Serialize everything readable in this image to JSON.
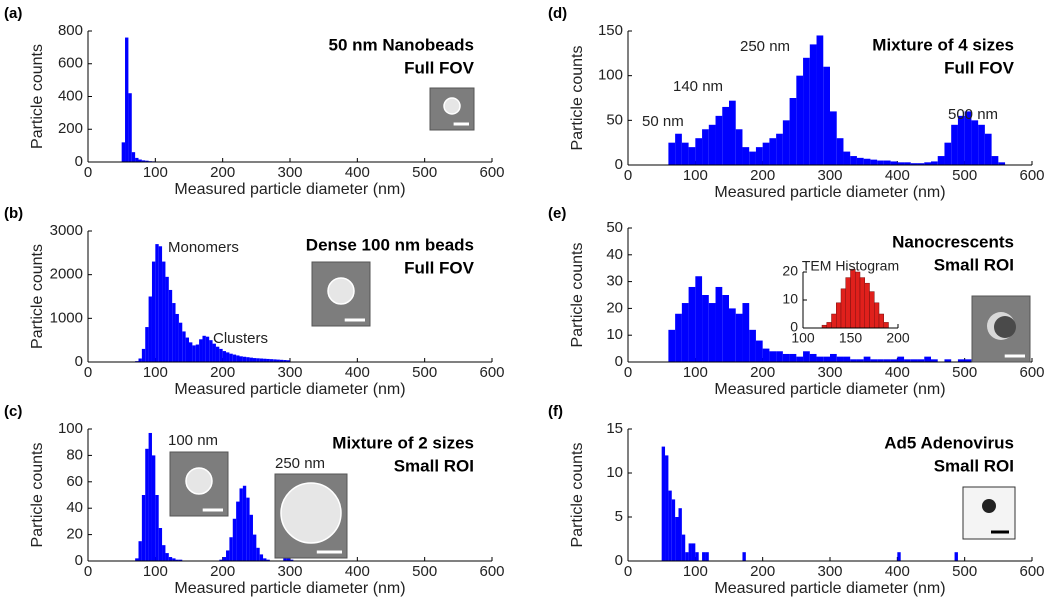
{
  "chart_data": [
    {
      "type": "histogram",
      "label": "(a)",
      "title": "50 nm Nanobeads",
      "subtitle": "Full FOV",
      "xlabel": "Measured particle diameter (nm)",
      "ylabel": "Particle counts",
      "color": "#0000ff",
      "bins": [
        50,
        55,
        60,
        65,
        70,
        75,
        80,
        85,
        90,
        95,
        100,
        105,
        110,
        115,
        120
      ],
      "counts": [
        120,
        760,
        420,
        60,
        25,
        15,
        10,
        8,
        5,
        4,
        3,
        3,
        2,
        2
      ],
      "xlim": [
        0,
        600
      ],
      "xticks": [
        0,
        100,
        200,
        300,
        400,
        500,
        600
      ],
      "ylim": [
        0,
        800
      ],
      "yticks": [
        0,
        200,
        400,
        600,
        800
      ]
    },
    {
      "type": "histogram",
      "label": "(b)",
      "title": "Dense 100 nm beads",
      "subtitle": "Full FOV",
      "annotations": [
        "Monomers",
        "Clusters"
      ],
      "xlabel": "Measured particle diameter (nm)",
      "ylabel": "Particle counts",
      "color": "#0000ff",
      "bins": [
        70,
        75,
        80,
        85,
        90,
        95,
        100,
        105,
        110,
        115,
        120,
        125,
        130,
        135,
        140,
        145,
        150,
        155,
        160,
        165,
        170,
        175,
        180,
        185,
        190,
        195,
        200,
        205,
        210,
        215,
        220,
        225,
        230,
        235,
        240,
        245,
        250,
        255,
        260,
        265,
        270,
        275,
        280,
        285,
        290,
        295,
        300
      ],
      "counts": [
        20,
        80,
        300,
        800,
        1500,
        2300,
        2700,
        2650,
        2300,
        1950,
        1650,
        1350,
        1100,
        900,
        700,
        560,
        450,
        380,
        400,
        520,
        600,
        580,
        500,
        420,
        350,
        300,
        250,
        220,
        190,
        170,
        150,
        130,
        120,
        110,
        100,
        90,
        85,
        80,
        75,
        70,
        65,
        60,
        55,
        50,
        45,
        40
      ],
      "xlim": [
        0,
        600
      ],
      "xticks": [
        0,
        100,
        200,
        300,
        400,
        500,
        600
      ],
      "ylim": [
        0,
        3000
      ],
      "yticks": [
        0,
        1000,
        2000,
        3000
      ]
    },
    {
      "type": "histogram",
      "label": "(c)",
      "title": "Mixture of 2 sizes",
      "subtitle": "Small ROI",
      "annotations": [
        "100 nm",
        "250 nm"
      ],
      "xlabel": "Measured particle diameter (nm)",
      "ylabel": "Particle counts",
      "color": "#0000ff",
      "bins": [
        70,
        75,
        80,
        85,
        90,
        95,
        100,
        105,
        110,
        115,
        120,
        125,
        130,
        135,
        140,
        145,
        150,
        155,
        160,
        165,
        170,
        175,
        180,
        185,
        190,
        195,
        200,
        205,
        210,
        215,
        220,
        225,
        230,
        235,
        240,
        245,
        250,
        255,
        260,
        265,
        270,
        275,
        280,
        285,
        290,
        295,
        300,
        305,
        310
      ],
      "counts": [
        2,
        15,
        50,
        85,
        97,
        80,
        50,
        25,
        12,
        6,
        3,
        2,
        1,
        1,
        0,
        0,
        0,
        0,
        0,
        0,
        0,
        0,
        0,
        0,
        0,
        1,
        3,
        8,
        18,
        32,
        45,
        55,
        57,
        48,
        35,
        20,
        10,
        5,
        2,
        1,
        0,
        0,
        0,
        0,
        2,
        2,
        1,
        0
      ],
      "xlim": [
        0,
        600
      ],
      "xticks": [
        0,
        100,
        200,
        300,
        400,
        500,
        600
      ],
      "ylim": [
        0,
        100
      ],
      "yticks": [
        0,
        20,
        40,
        60,
        80,
        100
      ]
    },
    {
      "type": "histogram",
      "label": "(d)",
      "title": "Mixture of 4 sizes",
      "subtitle": "Full FOV",
      "annotations": [
        "50 nm",
        "140 nm",
        "250 nm",
        "500 nm"
      ],
      "xlabel": "Measured particle diameter (nm)",
      "ylabel": "Particle counts",
      "color": "#0000ff",
      "bins": [
        60,
        70,
        80,
        90,
        100,
        110,
        120,
        130,
        140,
        150,
        160,
        170,
        180,
        190,
        200,
        210,
        220,
        230,
        240,
        250,
        260,
        270,
        280,
        290,
        300,
        310,
        320,
        330,
        340,
        350,
        360,
        370,
        380,
        390,
        400,
        410,
        420,
        430,
        440,
        450,
        460,
        470,
        480,
        490,
        500,
        510,
        520,
        530,
        540,
        550,
        560
      ],
      "counts": [
        25,
        35,
        25,
        20,
        30,
        40,
        45,
        55,
        65,
        72,
        40,
        20,
        15,
        20,
        25,
        30,
        35,
        50,
        75,
        100,
        120,
        135,
        145,
        110,
        60,
        30,
        15,
        10,
        8,
        7,
        6,
        5,
        5,
        4,
        3,
        3,
        2,
        2,
        3,
        4,
        10,
        25,
        45,
        55,
        60,
        50,
        45,
        35,
        10,
        3
      ],
      "xlim": [
        0,
        600
      ],
      "xticks": [
        0,
        100,
        200,
        300,
        400,
        500,
        600
      ],
      "ylim": [
        0,
        150
      ],
      "yticks": [
        0,
        50,
        100,
        150
      ]
    },
    {
      "type": "histogram",
      "label": "(e)",
      "title": "Nanocrescents",
      "subtitle": "Small ROI",
      "xlabel": "Measured particle diameter (nm)",
      "ylabel": "Particle counts",
      "color": "#0000ff",
      "bins": [
        60,
        70,
        80,
        90,
        100,
        110,
        120,
        130,
        140,
        150,
        160,
        170,
        180,
        190,
        200,
        210,
        220,
        230,
        240,
        250,
        260,
        270,
        280,
        290,
        300,
        310,
        320,
        330,
        340,
        350,
        360,
        370,
        380,
        390,
        400,
        410,
        420,
        430,
        440,
        450,
        460,
        470,
        480,
        490,
        500,
        510,
        520,
        530,
        540,
        550,
        560,
        570,
        580
      ],
      "counts": [
        12,
        18,
        22,
        28,
        32,
        25,
        22,
        28,
        25,
        20,
        18,
        22,
        12,
        8,
        5,
        4,
        4,
        3,
        3,
        2,
        4,
        3,
        2,
        2,
        3,
        2,
        2,
        1,
        1,
        2,
        1,
        1,
        1,
        1,
        2,
        1,
        1,
        1,
        2,
        1,
        0,
        1,
        0,
        1,
        1,
        0,
        1,
        1,
        0,
        1,
        1,
        1
      ],
      "xlim": [
        0,
        600
      ],
      "xticks": [
        0,
        100,
        200,
        300,
        400,
        500,
        600
      ],
      "ylim": [
        0,
        50
      ],
      "yticks": [
        0,
        10,
        20,
        30,
        40,
        50
      ]
    },
    {
      "type": "histogram",
      "label": "(f)",
      "title": "Ad5 Adenovirus",
      "subtitle": "Small ROI",
      "xlabel": "Measured particle diameter (nm)",
      "ylabel": "Particle counts",
      "color": "#0000ff",
      "bins": [
        50,
        55,
        60,
        65,
        70,
        75,
        80,
        85,
        90,
        95,
        100,
        105,
        110,
        115,
        120,
        170,
        175,
        400,
        405,
        485,
        490
      ],
      "counts": [
        13,
        12,
        8,
        7,
        5,
        6,
        3,
        1,
        2,
        2,
        1,
        0,
        1,
        1,
        0,
        1,
        0,
        1,
        0,
        1
      ],
      "xlim": [
        0,
        600
      ],
      "xticks": [
        0,
        100,
        200,
        300,
        400,
        500,
        600
      ],
      "ylim": [
        0,
        15
      ],
      "yticks": [
        0,
        5,
        10,
        15
      ]
    },
    {
      "type": "histogram",
      "title": "TEM Histogram",
      "color": "#e0201c",
      "bins": [
        120,
        125,
        130,
        135,
        140,
        145,
        150,
        155,
        160,
        165,
        170,
        175,
        180,
        185,
        190
      ],
      "counts": [
        1,
        2,
        5,
        9,
        14,
        18,
        21,
        20,
        18,
        16,
        13,
        9,
        5,
        2
      ],
      "xlim": [
        100,
        200
      ],
      "xticks": [
        100,
        150,
        200
      ],
      "ylim": [
        0,
        20
      ],
      "yticks": [
        0,
        10,
        20
      ]
    }
  ]
}
